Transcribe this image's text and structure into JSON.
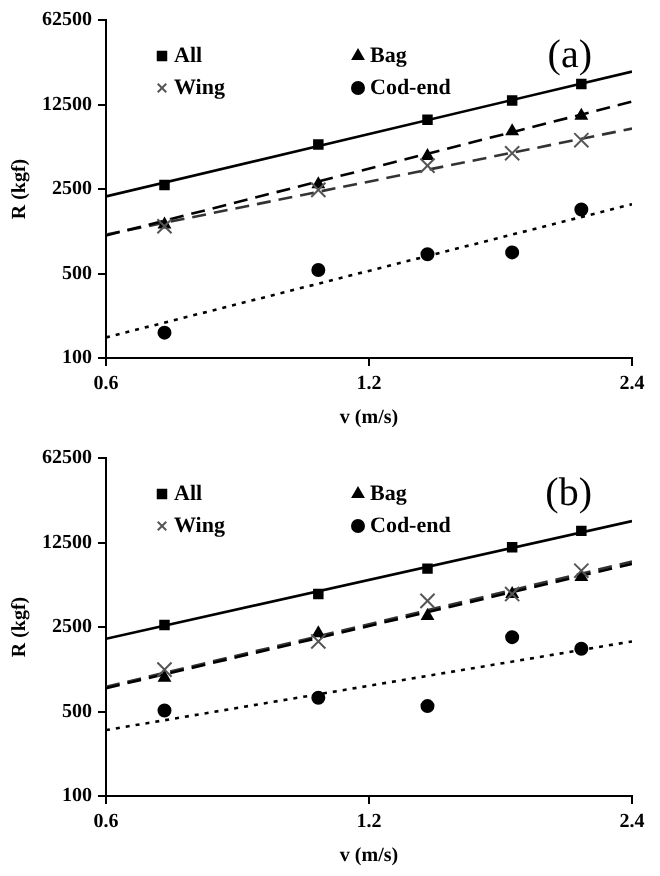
{
  "chart_data": [
    {
      "type": "scatter",
      "xlabel": "v (m/s)",
      "ylabel": "R (kgf)",
      "annotations": [
        "(a)"
      ],
      "log": "xy",
      "grid": false,
      "legend": "top left",
      "xlim": [
        0.6,
        2.4
      ],
      "xticks": [
        0.6,
        1.2,
        2.4
      ],
      "ylim": [
        100,
        62500
      ],
      "yticks": [
        100,
        500,
        2500,
        12500,
        62500
      ],
      "series": [
        {
          "name": "All",
          "type": "scatter",
          "marker": "square",
          "color": "#000000",
          "x": [
            0.7,
            1.05,
            1.4,
            1.75,
            2.1
          ],
          "values": [
            2700,
            5840,
            9370,
            13500,
            18500
          ]
        },
        {
          "name": "Bag",
          "type": "scatter",
          "marker": "triangle",
          "color": "#000000",
          "x": [
            0.7,
            1.05,
            1.4,
            1.75,
            2.1
          ],
          "values": [
            1270,
            2740,
            4680,
            7500,
            10100
          ]
        },
        {
          "name": "Wing",
          "type": "scatter",
          "marker": "cross",
          "color": "#555555",
          "x": [
            0.7,
            1.05,
            1.4,
            1.75,
            2.1
          ],
          "values": [
            1230,
            2460,
            3900,
            4940,
            6330
          ]
        },
        {
          "name": "Cod-end",
          "type": "scatter",
          "marker": "circle",
          "color": "#000000",
          "x": [
            0.7,
            1.05,
            1.4,
            1.75,
            2.1
          ],
          "values": [
            162,
            535,
            722,
            747,
            1690
          ]
        },
        {
          "type": "line",
          "line_style": "solid",
          "color": "#000000",
          "x": [
            0.6,
            2.4
          ],
          "values": [
            2170,
            23400
          ]
        },
        {
          "type": "line",
          "line_style": "dashed",
          "color": "#000000",
          "x": [
            0.6,
            2.4
          ],
          "values": [
            1030,
            13200
          ]
        },
        {
          "type": "line",
          "line_style": "dashed",
          "color": "#333333",
          "x": [
            0.6,
            2.4
          ],
          "values": [
            1050,
            7900
          ]
        },
        {
          "type": "line",
          "line_style": "dotted",
          "color": "#000000",
          "x": [
            0.6,
            2.4
          ],
          "values": [
            148,
            1870
          ]
        }
      ]
    },
    {
      "type": "scatter",
      "xlabel": "v (m/s)",
      "ylabel": "R (kgf)",
      "annotations": [
        "(b)"
      ],
      "log": "xy",
      "grid": false,
      "legend": "top left",
      "xlim": [
        0.6,
        2.4
      ],
      "xticks": [
        0.6,
        1.2,
        2.4
      ],
      "ylim": [
        100,
        62500
      ],
      "yticks": [
        100,
        500,
        2500,
        12500,
        62500
      ],
      "series": [
        {
          "name": "All",
          "type": "scatter",
          "marker": "square",
          "color": "#000000",
          "x": [
            0.7,
            1.05,
            1.4,
            1.75,
            2.1
          ],
          "values": [
            2600,
            4680,
            7600,
            11400,
            15600
          ]
        },
        {
          "name": "Bag",
          "type": "scatter",
          "marker": "triangle",
          "color": "#000000",
          "x": [
            0.7,
            1.05,
            1.4,
            1.75,
            2.1
          ],
          "values": [
            950,
            2220,
            3080,
            4680,
            6490
          ]
        },
        {
          "name": "Wing",
          "type": "scatter",
          "marker": "cross",
          "color": "#555555",
          "x": [
            0.7,
            1.05,
            1.4,
            1.75,
            2.1
          ],
          "values": [
            1110,
            1900,
            4110,
            4680,
            7310
          ]
        },
        {
          "name": "Cod-end",
          "type": "scatter",
          "marker": "circle",
          "color": "#000000",
          "x": [
            0.7,
            1.05,
            1.4,
            1.75,
            2.1
          ],
          "values": [
            510,
            650,
            554,
            2060,
            1650
          ]
        },
        {
          "type": "line",
          "line_style": "solid",
          "color": "#000000",
          "x": [
            0.6,
            2.4
          ],
          "values": [
            2000,
            18800
          ]
        },
        {
          "type": "line",
          "line_style": "dashed",
          "color": "#000000",
          "x": [
            0.6,
            2.4
          ],
          "values": [
            780,
            8330
          ]
        },
        {
          "type": "line",
          "line_style": "dashed",
          "color": "#333333",
          "x": [
            0.6,
            2.4
          ],
          "values": [
            800,
            8700
          ]
        },
        {
          "type": "line",
          "line_style": "dotted",
          "color": "#000000",
          "x": [
            0.6,
            2.4
          ],
          "values": [
            351,
            1900
          ]
        }
      ]
    }
  ]
}
